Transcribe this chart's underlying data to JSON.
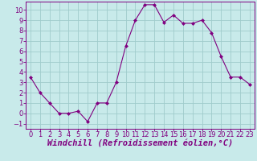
{
  "x": [
    0,
    1,
    2,
    3,
    4,
    5,
    6,
    7,
    8,
    9,
    10,
    11,
    12,
    13,
    14,
    15,
    16,
    17,
    18,
    19,
    20,
    21,
    22,
    23
  ],
  "y": [
    3.5,
    2.0,
    1.0,
    0.0,
    0.0,
    0.2,
    -0.8,
    1.0,
    1.0,
    3.0,
    6.5,
    9.0,
    10.5,
    10.5,
    8.8,
    9.5,
    8.7,
    8.7,
    9.0,
    7.8,
    5.5,
    3.5,
    3.5,
    2.8
  ],
  "line_color": "#800080",
  "marker_color": "#800080",
  "bg_color": "#c8eaea",
  "grid_color": "#a0cccc",
  "xlabel": "Windchill (Refroidissement éolien,°C)",
  "xlabel_color": "#800080",
  "xlim": [
    -0.5,
    23.5
  ],
  "ylim": [
    -1.5,
    10.8
  ],
  "yticks": [
    -1,
    0,
    1,
    2,
    3,
    4,
    5,
    6,
    7,
    8,
    9,
    10
  ],
  "xticks": [
    0,
    1,
    2,
    3,
    4,
    5,
    6,
    7,
    8,
    9,
    10,
    11,
    12,
    13,
    14,
    15,
    16,
    17,
    18,
    19,
    20,
    21,
    22,
    23
  ],
  "tick_color": "#800080",
  "tick_fontsize": 6.0,
  "xlabel_fontsize": 7.5,
  "border_color": "#800080"
}
